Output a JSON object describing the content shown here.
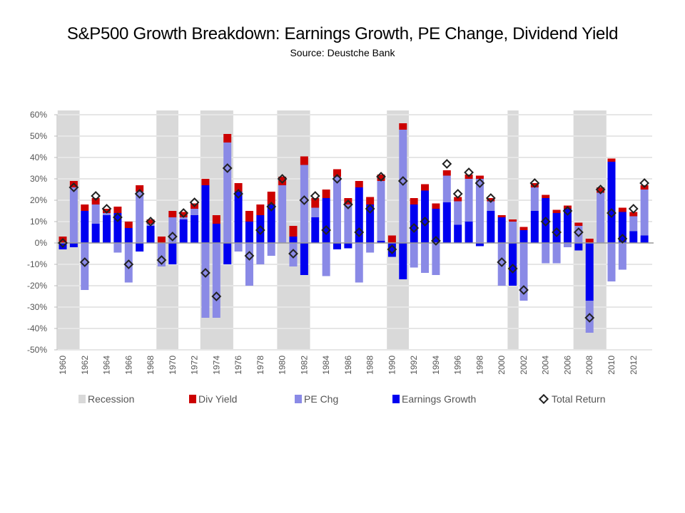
{
  "header": {
    "title": "S&P500 Growth Breakdown: Earnings Growth, PE Change, Dividend Yield",
    "subtitle": "Source: Deustche Bank"
  },
  "legend": [
    {
      "key": "recession",
      "label": "Recession",
      "color": "#d9d9d9",
      "shape": "square"
    },
    {
      "key": "div_yield",
      "label": "Div Yield",
      "color": "#cc0000",
      "shape": "square"
    },
    {
      "key": "pe_chg",
      "label": "PE Chg",
      "color": "#8a8ae6",
      "shape": "square"
    },
    {
      "key": "earnings_growth",
      "label": "Earnings Growth",
      "color": "#0000f0",
      "shape": "square"
    },
    {
      "key": "total_return",
      "label": "Total Return",
      "color": "#222222",
      "shape": "diamond"
    }
  ],
  "chart_data": {
    "type": "bar",
    "stacked": true,
    "title": "S&P500 Growth Breakdown: Earnings Growth, PE Change, Dividend Yield",
    "subtitle": "Source: Deustche Bank",
    "xlabel": "",
    "ylabel": "",
    "ylim": [
      -50,
      60
    ],
    "y_unit": "%",
    "y_ticks": [
      60,
      50,
      40,
      30,
      20,
      10,
      0,
      -10,
      -20,
      -30,
      -40,
      -50
    ],
    "grid": true,
    "legend_position": "bottom",
    "categories": [
      1960,
      1961,
      1962,
      1963,
      1964,
      1965,
      1966,
      1967,
      1968,
      1969,
      1970,
      1971,
      1972,
      1973,
      1974,
      1975,
      1976,
      1977,
      1978,
      1979,
      1980,
      1981,
      1982,
      1983,
      1984,
      1985,
      1986,
      1987,
      1988,
      1989,
      1990,
      1991,
      1992,
      1993,
      1994,
      1995,
      1996,
      1997,
      1998,
      1999,
      2000,
      2001,
      2002,
      2003,
      2004,
      2005,
      2006,
      2007,
      2008,
      2009,
      2010,
      2011,
      2012,
      2013
    ],
    "x_tick_labels": [
      "1960",
      "1962",
      "1964",
      "1966",
      "1968",
      "1970",
      "1972",
      "1974",
      "1976",
      "1978",
      "1980",
      "1982",
      "1984",
      "1986",
      "1988",
      "1990",
      "1992",
      "1994",
      "1996",
      "1998",
      "2000",
      "2002",
      "2004",
      "2006",
      "2008",
      "2010",
      "2012"
    ],
    "recessions": [
      [
        1960,
        1961
      ],
      [
        1969,
        1970
      ],
      [
        1973,
        1975
      ],
      [
        1980,
        1982
      ],
      [
        1990,
        1991
      ],
      [
        2001,
        2001
      ],
      [
        2007,
        2009
      ]
    ],
    "series": [
      {
        "name": "Earnings Growth",
        "type": "bar",
        "values": [
          -3,
          -2,
          15,
          9,
          13,
          14,
          7,
          -4,
          8,
          0,
          -10,
          11,
          13,
          27,
          9,
          -10,
          24,
          10,
          13,
          18,
          0,
          3,
          -15,
          12,
          21,
          -3,
          -2.5,
          26,
          18,
          1,
          -6.5,
          -17,
          18,
          24.5,
          16,
          19,
          8.5,
          10,
          -1.5,
          15,
          12,
          -20,
          6,
          15,
          21,
          14,
          16,
          -3.5,
          -27,
          0,
          38,
          14.5,
          5.5,
          3.5
        ]
      },
      {
        "name": "PE Chg",
        "type": "bar",
        "values": [
          0,
          26,
          -22,
          9,
          1,
          -4.5,
          -18.5,
          24,
          1,
          -11,
          12,
          1,
          3,
          -35,
          -35,
          47,
          -4,
          -20,
          -10,
          -6,
          27,
          -11,
          36.5,
          4.5,
          -15.5,
          31,
          18,
          -18.5,
          -4.5,
          28,
          0,
          53,
          -11.5,
          -14,
          -15,
          12.5,
          11,
          20,
          30,
          4.5,
          -20,
          10,
          -27,
          11,
          -9.5,
          -9.5,
          -2,
          8,
          -15,
          23.5,
          -18,
          -12.5,
          7,
          21.5
        ]
      },
      {
        "name": "Div Yield",
        "type": "bar",
        "values": [
          3,
          3,
          3,
          3,
          2,
          3,
          3,
          3,
          2,
          3,
          3,
          2.5,
          2.5,
          3,
          4,
          4,
          4,
          5,
          5,
          6,
          4,
          5,
          4,
          4.5,
          4,
          3.5,
          3,
          3,
          3.5,
          3,
          3.5,
          3,
          3,
          3,
          2.5,
          2.5,
          2,
          2,
          1.5,
          1.5,
          1,
          1,
          1.5,
          2,
          1.5,
          1.5,
          1.5,
          1.5,
          2,
          2.5,
          1.5,
          2,
          2,
          2
        ]
      },
      {
        "name": "Total Return",
        "type": "scatter",
        "marker": "diamond",
        "values": [
          0,
          26,
          -9,
          22,
          16,
          12,
          -10,
          23,
          10,
          -8,
          3,
          14,
          19,
          -14,
          -25,
          35,
          23,
          -6,
          6,
          17,
          30,
          -5,
          20,
          22,
          6,
          30,
          18,
          5,
          16,
          31,
          -3,
          29,
          7,
          10,
          1,
          37,
          23,
          33,
          28,
          21,
          -9,
          -12,
          -22,
          28,
          10,
          5,
          15,
          5,
          -35,
          25,
          14,
          2,
          16,
          28
        ]
      }
    ]
  }
}
